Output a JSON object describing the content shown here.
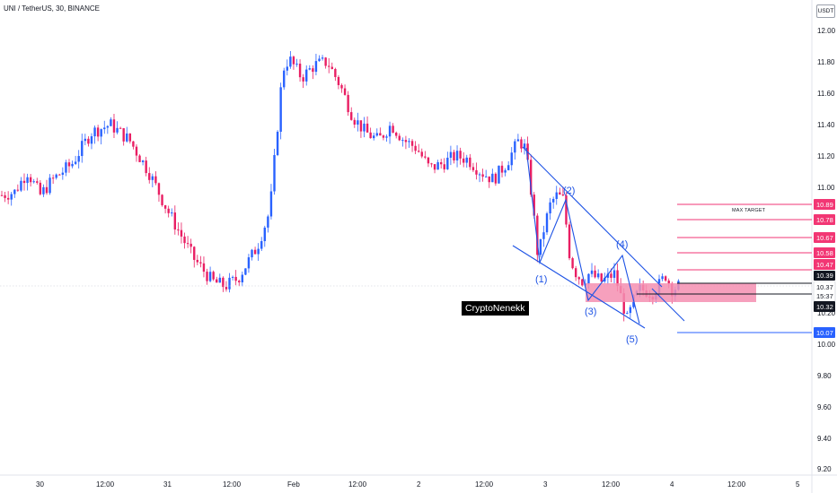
{
  "header": {
    "symbol_title": "UNI / TetherUS, 30, BINANCE",
    "currency": "USDT"
  },
  "watermark": "CryptoNenekk",
  "chart_data": {
    "type": "candlestick",
    "symbol": "UNI / TetherUS",
    "interval": "30",
    "exchange": "BINANCE",
    "y_axis": {
      "ticks": [
        "12.00",
        "11.80",
        "11.60",
        "11.40",
        "11.20",
        "11.00",
        "10.20",
        "10.00",
        "9.80",
        "9.60",
        "9.40",
        "9.20"
      ],
      "ylim": [
        9.17,
        12.08
      ]
    },
    "x_axis": {
      "ticks": [
        "30",
        "12:00",
        "31",
        "12:00",
        "Feb",
        "12:00",
        "2",
        "12:00",
        "3",
        "12:00",
        "4",
        "12:00",
        "5"
      ]
    },
    "price_path": [
      {
        "x": 0,
        "y": 10.95
      },
      {
        "x": 2,
        "y": 10.97
      },
      {
        "x": 4,
        "y": 11.1
      },
      {
        "x": 6,
        "y": 10.95
      },
      {
        "x": 8,
        "y": 11.05
      },
      {
        "x": 11,
        "y": 11.15
      },
      {
        "x": 14,
        "y": 11.35
      },
      {
        "x": 17,
        "y": 11.4
      },
      {
        "x": 20,
        "y": 11.3
      },
      {
        "x": 23,
        "y": 11.1
      },
      {
        "x": 26,
        "y": 10.85
      },
      {
        "x": 28,
        "y": 10.7
      },
      {
        "x": 30,
        "y": 10.55
      },
      {
        "x": 33,
        "y": 10.4
      },
      {
        "x": 35,
        "y": 10.37
      },
      {
        "x": 37,
        "y": 10.42
      },
      {
        "x": 40,
        "y": 10.62
      },
      {
        "x": 42,
        "y": 10.85
      },
      {
        "x": 43,
        "y": 11.3
      },
      {
        "x": 44,
        "y": 11.75
      },
      {
        "x": 45,
        "y": 11.82
      },
      {
        "x": 47,
        "y": 11.7
      },
      {
        "x": 49,
        "y": 11.78
      },
      {
        "x": 51,
        "y": 11.8
      },
      {
        "x": 53,
        "y": 11.65
      },
      {
        "x": 55,
        "y": 11.45
      },
      {
        "x": 57,
        "y": 11.35
      },
      {
        "x": 59,
        "y": 11.3
      },
      {
        "x": 61,
        "y": 11.4
      },
      {
        "x": 63,
        "y": 11.3
      },
      {
        "x": 65,
        "y": 11.25
      },
      {
        "x": 67,
        "y": 11.12
      },
      {
        "x": 69,
        "y": 11.15
      },
      {
        "x": 71,
        "y": 11.2
      },
      {
        "x": 73,
        "y": 11.18
      },
      {
        "x": 75,
        "y": 11.1
      },
      {
        "x": 77,
        "y": 11.05
      },
      {
        "x": 79,
        "y": 11.15
      },
      {
        "x": 81,
        "y": 11.3
      },
      {
        "x": 82,
        "y": 11.25
      },
      {
        "x": 83,
        "y": 10.95
      },
      {
        "x": 84,
        "y": 10.55
      },
      {
        "x": 85,
        "y": 10.75
      },
      {
        "x": 86,
        "y": 10.9
      },
      {
        "x": 87,
        "y": 10.95
      },
      {
        "x": 88,
        "y": 10.92
      },
      {
        "x": 89,
        "y": 10.55
      },
      {
        "x": 90,
        "y": 10.45
      },
      {
        "x": 91,
        "y": 10.4
      },
      {
        "x": 92,
        "y": 10.45
      },
      {
        "x": 94,
        "y": 10.4
      },
      {
        "x": 96,
        "y": 10.45
      },
      {
        "x": 97,
        "y": 10.3
      },
      {
        "x": 98,
        "y": 10.15
      },
      {
        "x": 99,
        "y": 10.28
      },
      {
        "x": 100,
        "y": 10.35
      },
      {
        "x": 102,
        "y": 10.33
      },
      {
        "x": 103,
        "y": 10.38
      },
      {
        "x": 104,
        "y": 10.44
      },
      {
        "x": 105,
        "y": 10.35
      },
      {
        "x": 106,
        "y": 10.37
      }
    ],
    "annotations": {
      "targets": [
        {
          "label": "10.89",
          "value": 10.89,
          "color": "#f23674"
        },
        {
          "label": "10.78",
          "value": 10.78,
          "color": "#f23674"
        },
        {
          "label": "10.67",
          "value": 10.67,
          "color": "#f23674"
        },
        {
          "label": "10.58",
          "value": 10.58,
          "color": "#f23674"
        },
        {
          "label": "10.47",
          "value": 10.47,
          "color": "#f23674"
        }
      ],
      "max_target_label": "MAX TARGET",
      "stop_loss": {
        "label": "10.07",
        "value": 10.07,
        "color": "#2962ff"
      },
      "horizontal_levels": [
        {
          "label": "10.39",
          "value": 10.39,
          "badge": "dark"
        },
        {
          "label": "10.32",
          "value": 10.32,
          "badge": "dark"
        }
      ],
      "current_price": {
        "label": "10.37",
        "countdown": "15:37"
      },
      "zone_color": "#f48fb1",
      "wave_labels": [
        "(1)",
        "(2)",
        "(3)",
        "(4)",
        "(5)"
      ]
    }
  },
  "colors": {
    "up": "#2962ff",
    "down": "#e91e63",
    "wedge": "#1e53e5",
    "grid": "#f0f3fa"
  }
}
